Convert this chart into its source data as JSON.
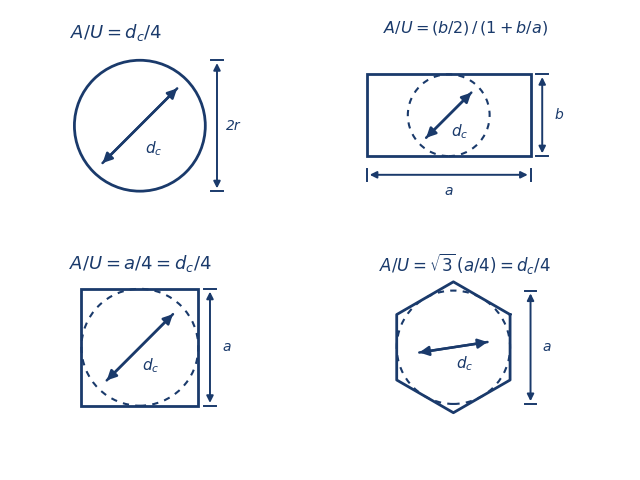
{
  "color": "#1a3a6b",
  "bg": "#ffffff",
  "title_fontsize": 13,
  "label_fontsize": 11,
  "formula1": "A/U = d_c/4",
  "formula2": "A/U = (b/2) / (1+b/a)",
  "formula3": "A/U = a/4 = d_c/4",
  "formula4": "A/U = √3 (a/4) = d_c/4"
}
